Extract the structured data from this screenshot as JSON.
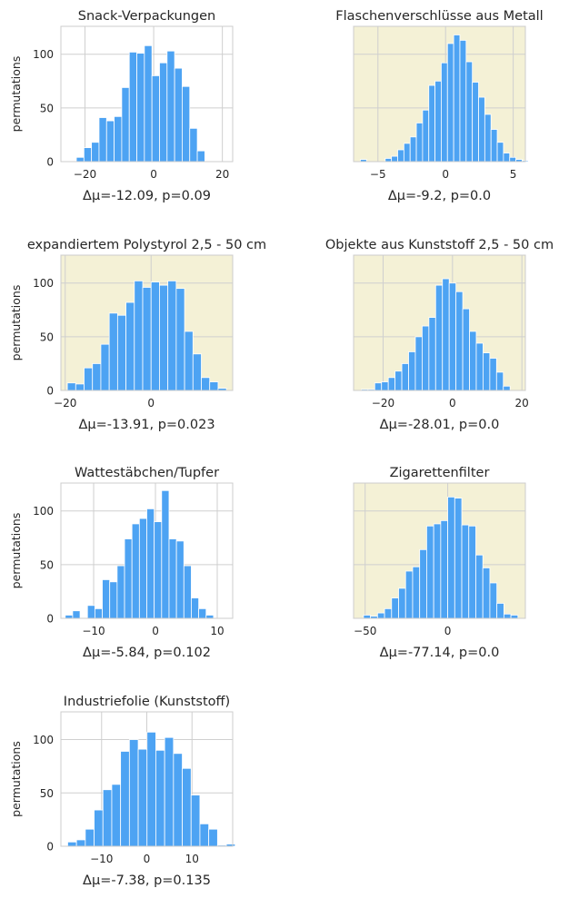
{
  "ylabel": "permutations",
  "chart_data": [
    {
      "type": "bar",
      "title": "Snack-Verpackungen",
      "xlabel": "Δμ=-12.09, p=0.09",
      "highlight": false,
      "xlim": [
        -27,
        23
      ],
      "ylim": [
        0,
        126
      ],
      "xticks": [
        -20,
        0,
        20
      ],
      "yticks": [
        0,
        50,
        100
      ],
      "bin_start": -22.5,
      "bin_width": 2.2,
      "values": [
        4,
        13,
        18,
        41,
        38,
        42,
        69,
        102,
        101,
        108,
        80,
        92,
        103,
        87,
        70,
        31,
        10
      ]
    },
    {
      "type": "bar",
      "title": "Flaschenverschlüsse aus Metall",
      "xlabel": "Δμ=-9.2, p=0.0",
      "highlight": true,
      "xlim": [
        -6.8,
        5.9
      ],
      "ylim": [
        0,
        126
      ],
      "xticks": [
        -5,
        0,
        5
      ],
      "yticks": [
        0,
        50,
        100
      ],
      "bin_start": -6.3,
      "bin_width": 0.46,
      "values": [
        2,
        0,
        0,
        0,
        3,
        5,
        11,
        17,
        23,
        36,
        48,
        71,
        75,
        92,
        110,
        118,
        113,
        93,
        74,
        60,
        44,
        30,
        18,
        8,
        4,
        2,
        1
      ]
    },
    {
      "type": "bar",
      "title": "expandiertem Polystyrol 2,5 - 50 cm",
      "xlabel": "Δμ=-13.91, p=0.023",
      "highlight": true,
      "xlim": [
        -21,
        19
      ],
      "ylim": [
        0,
        126
      ],
      "xticks": [
        -20,
        0
      ],
      "yticks": [
        0,
        50,
        100
      ],
      "bin_start": -19.5,
      "bin_width": 1.95,
      "values": [
        7,
        6,
        21,
        25,
        43,
        72,
        70,
        82,
        102,
        96,
        101,
        98,
        102,
        95,
        55,
        34,
        12,
        8,
        2
      ]
    },
    {
      "type": "bar",
      "title": "Objekte aus Kunststoff 2,5 - 50 cm",
      "xlabel": "Δμ=-28.01, p=0.0",
      "highlight": true,
      "xlim": [
        -28.5,
        21
      ],
      "ylim": [
        0,
        126
      ],
      "xticks": [
        -20,
        0,
        20
      ],
      "yticks": [
        0,
        50,
        100
      ],
      "bin_start": -26.3,
      "bin_width": 1.95,
      "values": [
        1,
        1,
        7,
        8,
        12,
        18,
        25,
        36,
        50,
        60,
        68,
        98,
        104,
        100,
        92,
        76,
        55,
        44,
        35,
        30,
        17,
        4
      ]
    },
    {
      "type": "bar",
      "title": "Wattestäbchen/Tupfer",
      "xlabel": "Δμ=-5.84, p=0.102",
      "highlight": false,
      "xlim": [
        -15.3,
        12.5
      ],
      "ylim": [
        0,
        126
      ],
      "xticks": [
        -10,
        0,
        10
      ],
      "yticks": [
        0,
        50,
        100
      ],
      "bin_start": -14.6,
      "bin_width": 1.2,
      "values": [
        3,
        7,
        0,
        12,
        9,
        36,
        34,
        49,
        74,
        88,
        93,
        102,
        90,
        119,
        74,
        72,
        49,
        19,
        9,
        3
      ]
    },
    {
      "type": "bar",
      "title": "Zigarettenfilter",
      "xlabel": "Δμ=-77.14, p=0.0",
      "highlight": true,
      "xlim": [
        -57,
        47
      ],
      "ylim": [
        0,
        126
      ],
      "xticks": [
        -50,
        0
      ],
      "yticks": [
        0,
        50,
        100
      ],
      "bin_start": -51,
      "bin_width": 4.25,
      "values": [
        3,
        2,
        5,
        9,
        19,
        28,
        44,
        48,
        64,
        86,
        88,
        91,
        113,
        112,
        87,
        86,
        59,
        47,
        33,
        14,
        4,
        3
      ]
    },
    {
      "type": "bar",
      "title": "Industriefolie (Kunststoff)",
      "xlabel": "Δμ=-7.38, p=0.135",
      "highlight": false,
      "xlim": [
        -19,
        19
      ],
      "ylim": [
        0,
        126
      ],
      "xticks": [
        -10,
        0,
        10
      ],
      "yticks": [
        0,
        50,
        100
      ],
      "bin_start": -17.5,
      "bin_width": 1.95,
      "values": [
        4,
        6,
        16,
        34,
        53,
        58,
        89,
        100,
        91,
        107,
        90,
        102,
        87,
        73,
        48,
        21,
        16,
        1,
        2
      ]
    }
  ]
}
